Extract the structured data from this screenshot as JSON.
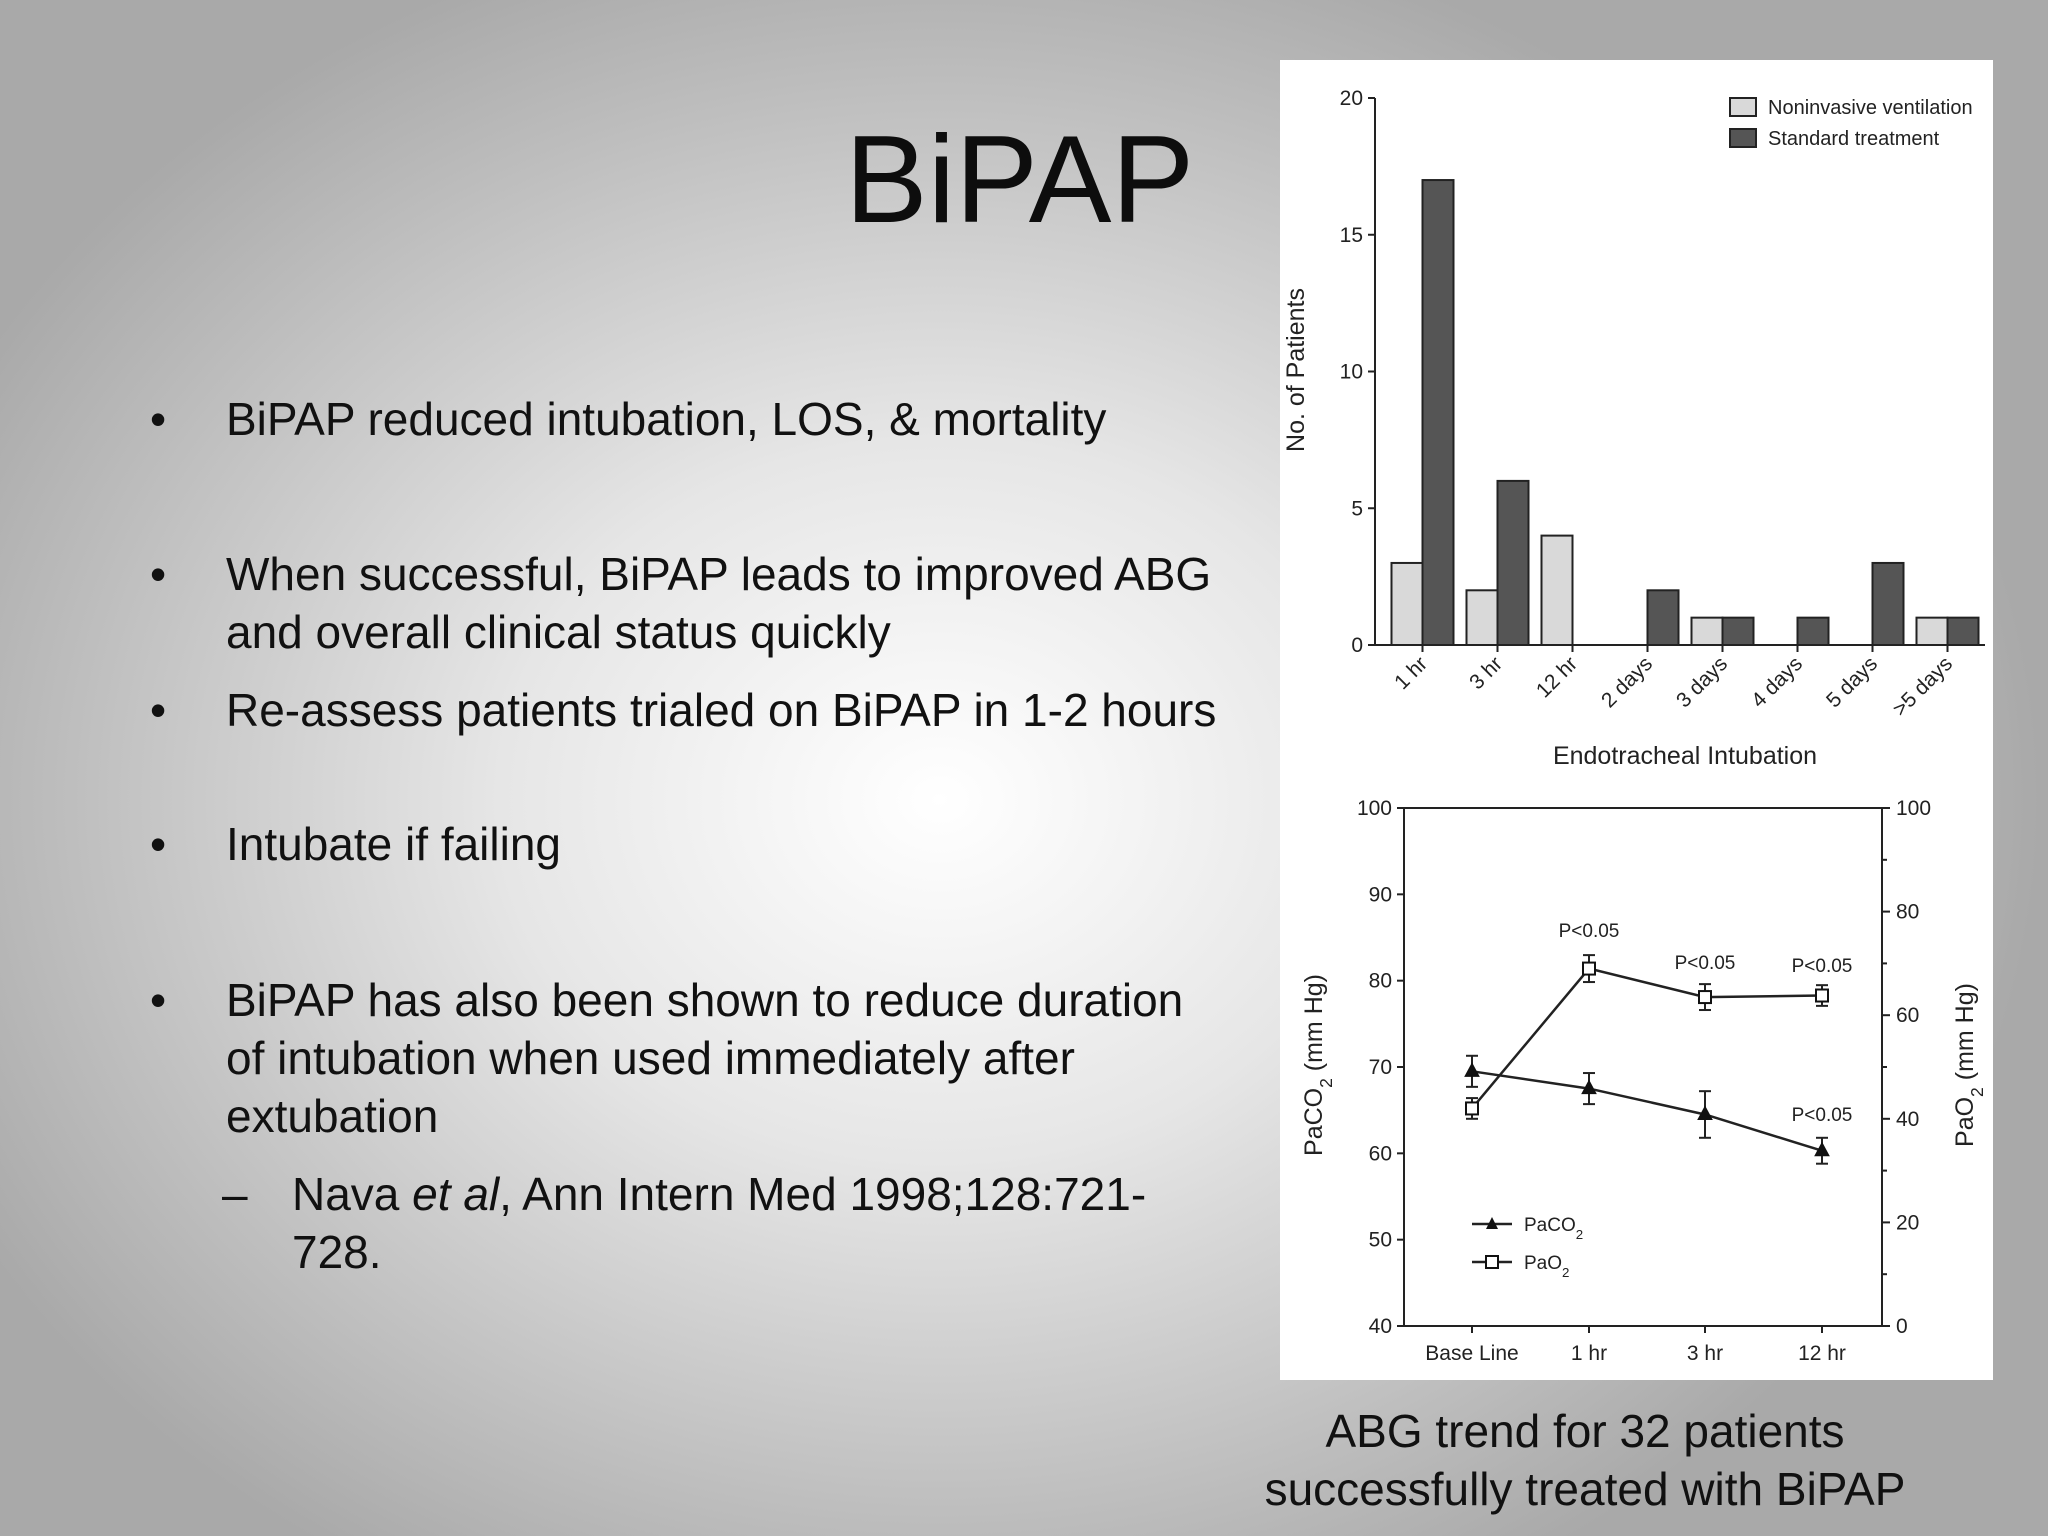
{
  "slide": {
    "title": "BiPAP",
    "bullets": [
      {
        "text": "BiPAP reduced intubation, LOS, & mortality"
      },
      {
        "text": "When successful, BiPAP leads to improved ABG and overall clinical status quickly"
      },
      {
        "text": "Re-assess patients trialed on BiPAP in 1-2 hours"
      },
      {
        "text": "Intubate if failing"
      },
      {
        "text": "BiPAP has also been shown to reduce duration of intubation when used immediately after extubation"
      }
    ],
    "sub_bullet": {
      "author": "Nava ",
      "italic": "et al",
      "rest": ", Ann Intern Med 1998;128:721-728."
    },
    "bullet_glyph": "•",
    "dash_glyph": "–",
    "caption": "ABG trend for 32 patients successfully treated with BiPAP"
  },
  "chart_data": [
    {
      "type": "bar",
      "title": "",
      "xlabel": "Endotracheal Intubation",
      "ylabel": "No. of Patients",
      "ylim": [
        0,
        20
      ],
      "yticks": [
        0,
        5,
        10,
        15,
        20
      ],
      "categories": [
        "1 hr",
        "3 hr",
        "12 hr",
        "2 days",
        "3 days",
        "4 days",
        "5 days",
        ">5 days"
      ],
      "series": [
        {
          "name": "Noninvasive ventilation",
          "color": "#d9d9d9",
          "values": [
            3,
            2,
            4,
            0,
            1,
            0,
            0,
            1
          ]
        },
        {
          "name": "Standard treatment",
          "color": "#555555",
          "values": [
            17,
            6,
            0,
            2,
            1,
            1,
            3,
            1
          ]
        }
      ],
      "legend": "top-right"
    },
    {
      "type": "line",
      "categories": [
        "Base Line",
        "1 hr",
        "3 hr",
        "12 hr"
      ],
      "y_left": {
        "label": "PaCO2 (mm Hg)",
        "ylim": [
          40,
          100
        ],
        "ticks": [
          40,
          50,
          60,
          70,
          80,
          90,
          100
        ]
      },
      "y_right": {
        "label": "PaO2 (mm Hg)",
        "ylim": [
          0,
          100
        ],
        "ticks": [
          0,
          20,
          40,
          60,
          80,
          100
        ]
      },
      "series": [
        {
          "name": "PaCO2",
          "axis": "left",
          "marker": "filled-triangle",
          "values": [
            69.5,
            67.5,
            64.5,
            60.3
          ],
          "errors": [
            1.8,
            1.8,
            2.7,
            1.5
          ]
        },
        {
          "name": "PaO2",
          "axis": "right",
          "marker": "open-square",
          "values": [
            42,
            69,
            63.5,
            63.8
          ],
          "errors": [
            2,
            2.6,
            2.5,
            2
          ]
        }
      ],
      "annotations": [
        "P<0.05",
        "P<0.05",
        "P<0.05",
        "P<0.05"
      ],
      "legend": "bottom-left"
    }
  ]
}
